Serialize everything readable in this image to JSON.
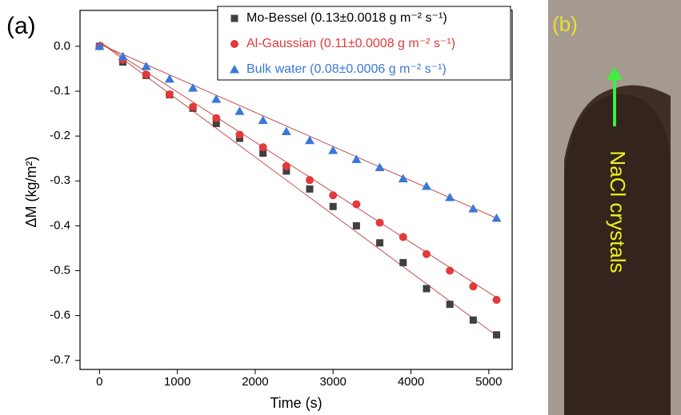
{
  "panel_a": "(a)",
  "panel_b": "(b)",
  "photo_annotation": "NaCl crystals",
  "chart_data": {
    "type": "scatter",
    "xlabel": "Time (s)",
    "ylabel": "ΔM (kg/m²)",
    "x": [
      0,
      300,
      600,
      900,
      1200,
      1500,
      1800,
      2100,
      2400,
      2700,
      3000,
      3300,
      3600,
      3900,
      4200,
      4500,
      4800,
      5100
    ],
    "series": [
      {
        "name": "Mo-Bessel (0.13±0.0018 g m⁻² s⁻¹)",
        "color": "#404040",
        "marker": "square",
        "values": [
          0,
          -0.035,
          -0.065,
          -0.108,
          -0.138,
          -0.172,
          -0.205,
          -0.238,
          -0.278,
          -0.318,
          -0.357,
          -0.4,
          -0.438,
          -0.482,
          -0.54,
          -0.575,
          -0.61,
          -0.643
        ],
        "fit_values": [
          0.01,
          -0.645
        ]
      },
      {
        "name": "Al-Gaussian (0.11±0.0008 g m⁻² s⁻¹)",
        "color": "#e03a3a",
        "marker": "circle",
        "values": [
          0,
          -0.03,
          -0.063,
          -0.107,
          -0.135,
          -0.16,
          -0.197,
          -0.225,
          -0.267,
          -0.298,
          -0.332,
          -0.352,
          -0.393,
          -0.425,
          -0.463,
          -0.5,
          -0.535,
          -0.565
        ],
        "fit_values": [
          0.01,
          -0.56
        ]
      },
      {
        "name": "Bulk water (0.08±0.0006 g m⁻² s⁻¹)",
        "color": "#3a78d8",
        "marker": "triangle",
        "values": [
          0,
          -0.023,
          -0.045,
          -0.073,
          -0.093,
          -0.118,
          -0.145,
          -0.165,
          -0.19,
          -0.21,
          -0.232,
          -0.252,
          -0.27,
          -0.295,
          -0.312,
          -0.337,
          -0.362,
          -0.383
        ],
        "fit_values": [
          0.005,
          -0.383
        ]
      }
    ],
    "fit_x": [
      0,
      5100
    ],
    "fit_color": "#c0504d",
    "xlim": [
      -250,
      5300
    ],
    "ylim": [
      -0.72,
      0.08
    ],
    "xticks": [
      0,
      1000,
      2000,
      3000,
      4000,
      5000
    ],
    "yticks": [
      {
        "value": 0,
        "label": "0.0"
      },
      -0.1,
      -0.2,
      -0.3,
      -0.4,
      -0.5,
      -0.6,
      -0.7
    ],
    "legend": "upper right",
    "grid": false
  }
}
